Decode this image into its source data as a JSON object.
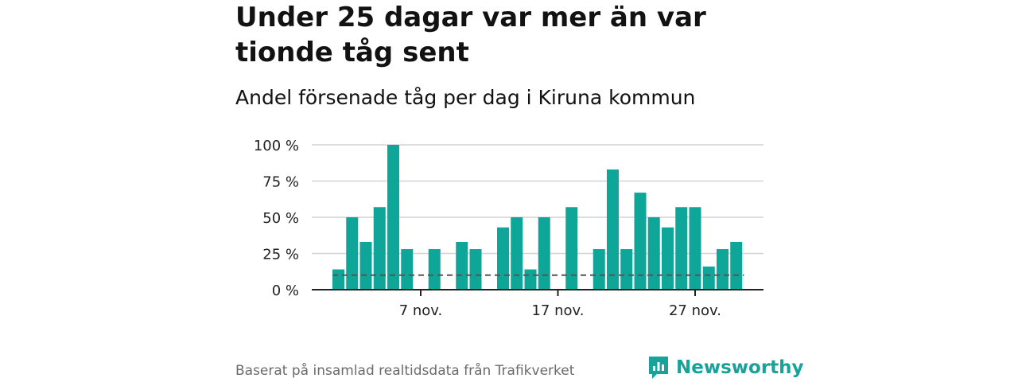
{
  "header": {
    "title": "Under 25 dagar var mer än var tionde tåg sent",
    "subtitle": "Andel försenade tåg per dag i Kiruna kommun"
  },
  "footer": {
    "source": "Baserat på insamlad realtidsdata från Trafikverket",
    "brand": "Newsworthy"
  },
  "colors": {
    "bar": "#0ea699",
    "reference_line": "#555555",
    "grid": "#d4d4d4",
    "axis": "#222222",
    "brand": "#16a39a"
  },
  "chart_data": {
    "type": "bar",
    "x_start": "2023-11-01",
    "x_labels": [
      "7 nov.",
      "17 nov.",
      "27 nov."
    ],
    "x_label_days": [
      7,
      17,
      27
    ],
    "values": [
      14,
      50,
      33,
      57,
      100,
      28,
      0,
      28,
      0,
      33,
      28,
      0,
      43,
      50,
      14,
      50,
      0,
      57,
      0,
      28,
      83,
      28,
      67,
      50,
      43,
      57,
      57,
      16,
      28,
      33
    ],
    "reference_line": 10,
    "y_ticks": [
      0,
      25,
      50,
      75,
      100
    ],
    "y_tick_labels": [
      "0 %",
      "25 %",
      "50 %",
      "75 %",
      "100 %"
    ],
    "ylim": [
      0,
      100
    ],
    "grid": true,
    "legend": "none"
  }
}
